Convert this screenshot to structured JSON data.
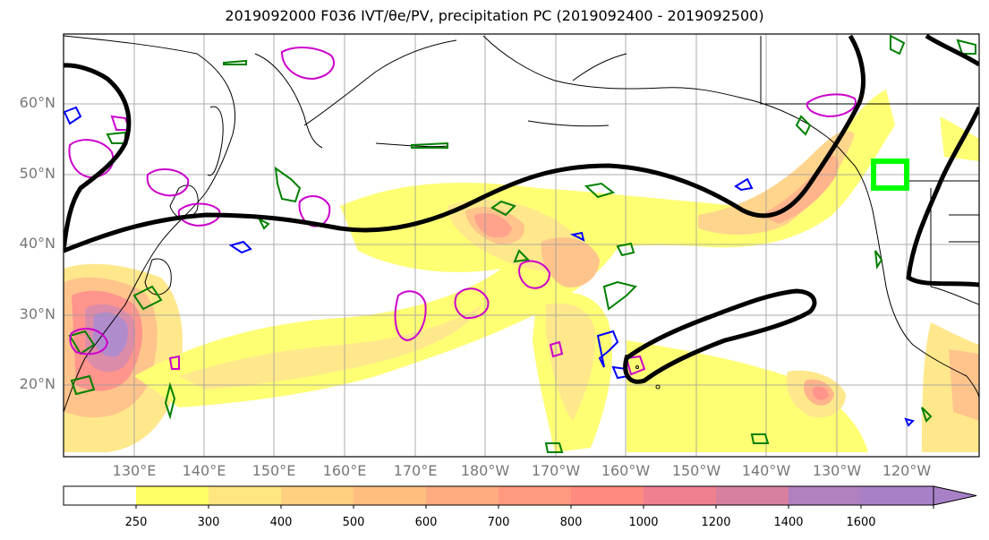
{
  "title": "2019092000 F036 IVT/θe/PV, precipitation PC (2019092400 - 2019092500)",
  "map": {
    "lat_labels": [
      "60°N",
      "50°N",
      "40°N",
      "30°N",
      "20°N"
    ],
    "lon_labels": [
      "130°E",
      "140°E",
      "150°E",
      "160°E",
      "170°E",
      "180°W",
      "170°W",
      "160°W",
      "150°W",
      "140°W",
      "130°W",
      "120°W"
    ],
    "highlight_box_color": "#00ff00",
    "theta_e_contour_color": "#000000",
    "pv_contour_colors": [
      "#008000",
      "#0000ff",
      "#cc00cc"
    ]
  },
  "colorbar": {
    "labels": [
      "250",
      "300",
      "400",
      "500",
      "600",
      "700",
      "800",
      "1000",
      "1200",
      "1400",
      "1600"
    ],
    "colors": [
      "#ffffff",
      "#ffff66",
      "#ffe680",
      "#ffd080",
      "#ffbe80",
      "#ffac80",
      "#ff9a80",
      "#ff8a80",
      "#f08090",
      "#d880a0",
      "#b080c0",
      "#a880c8",
      "#a880c8"
    ]
  }
}
